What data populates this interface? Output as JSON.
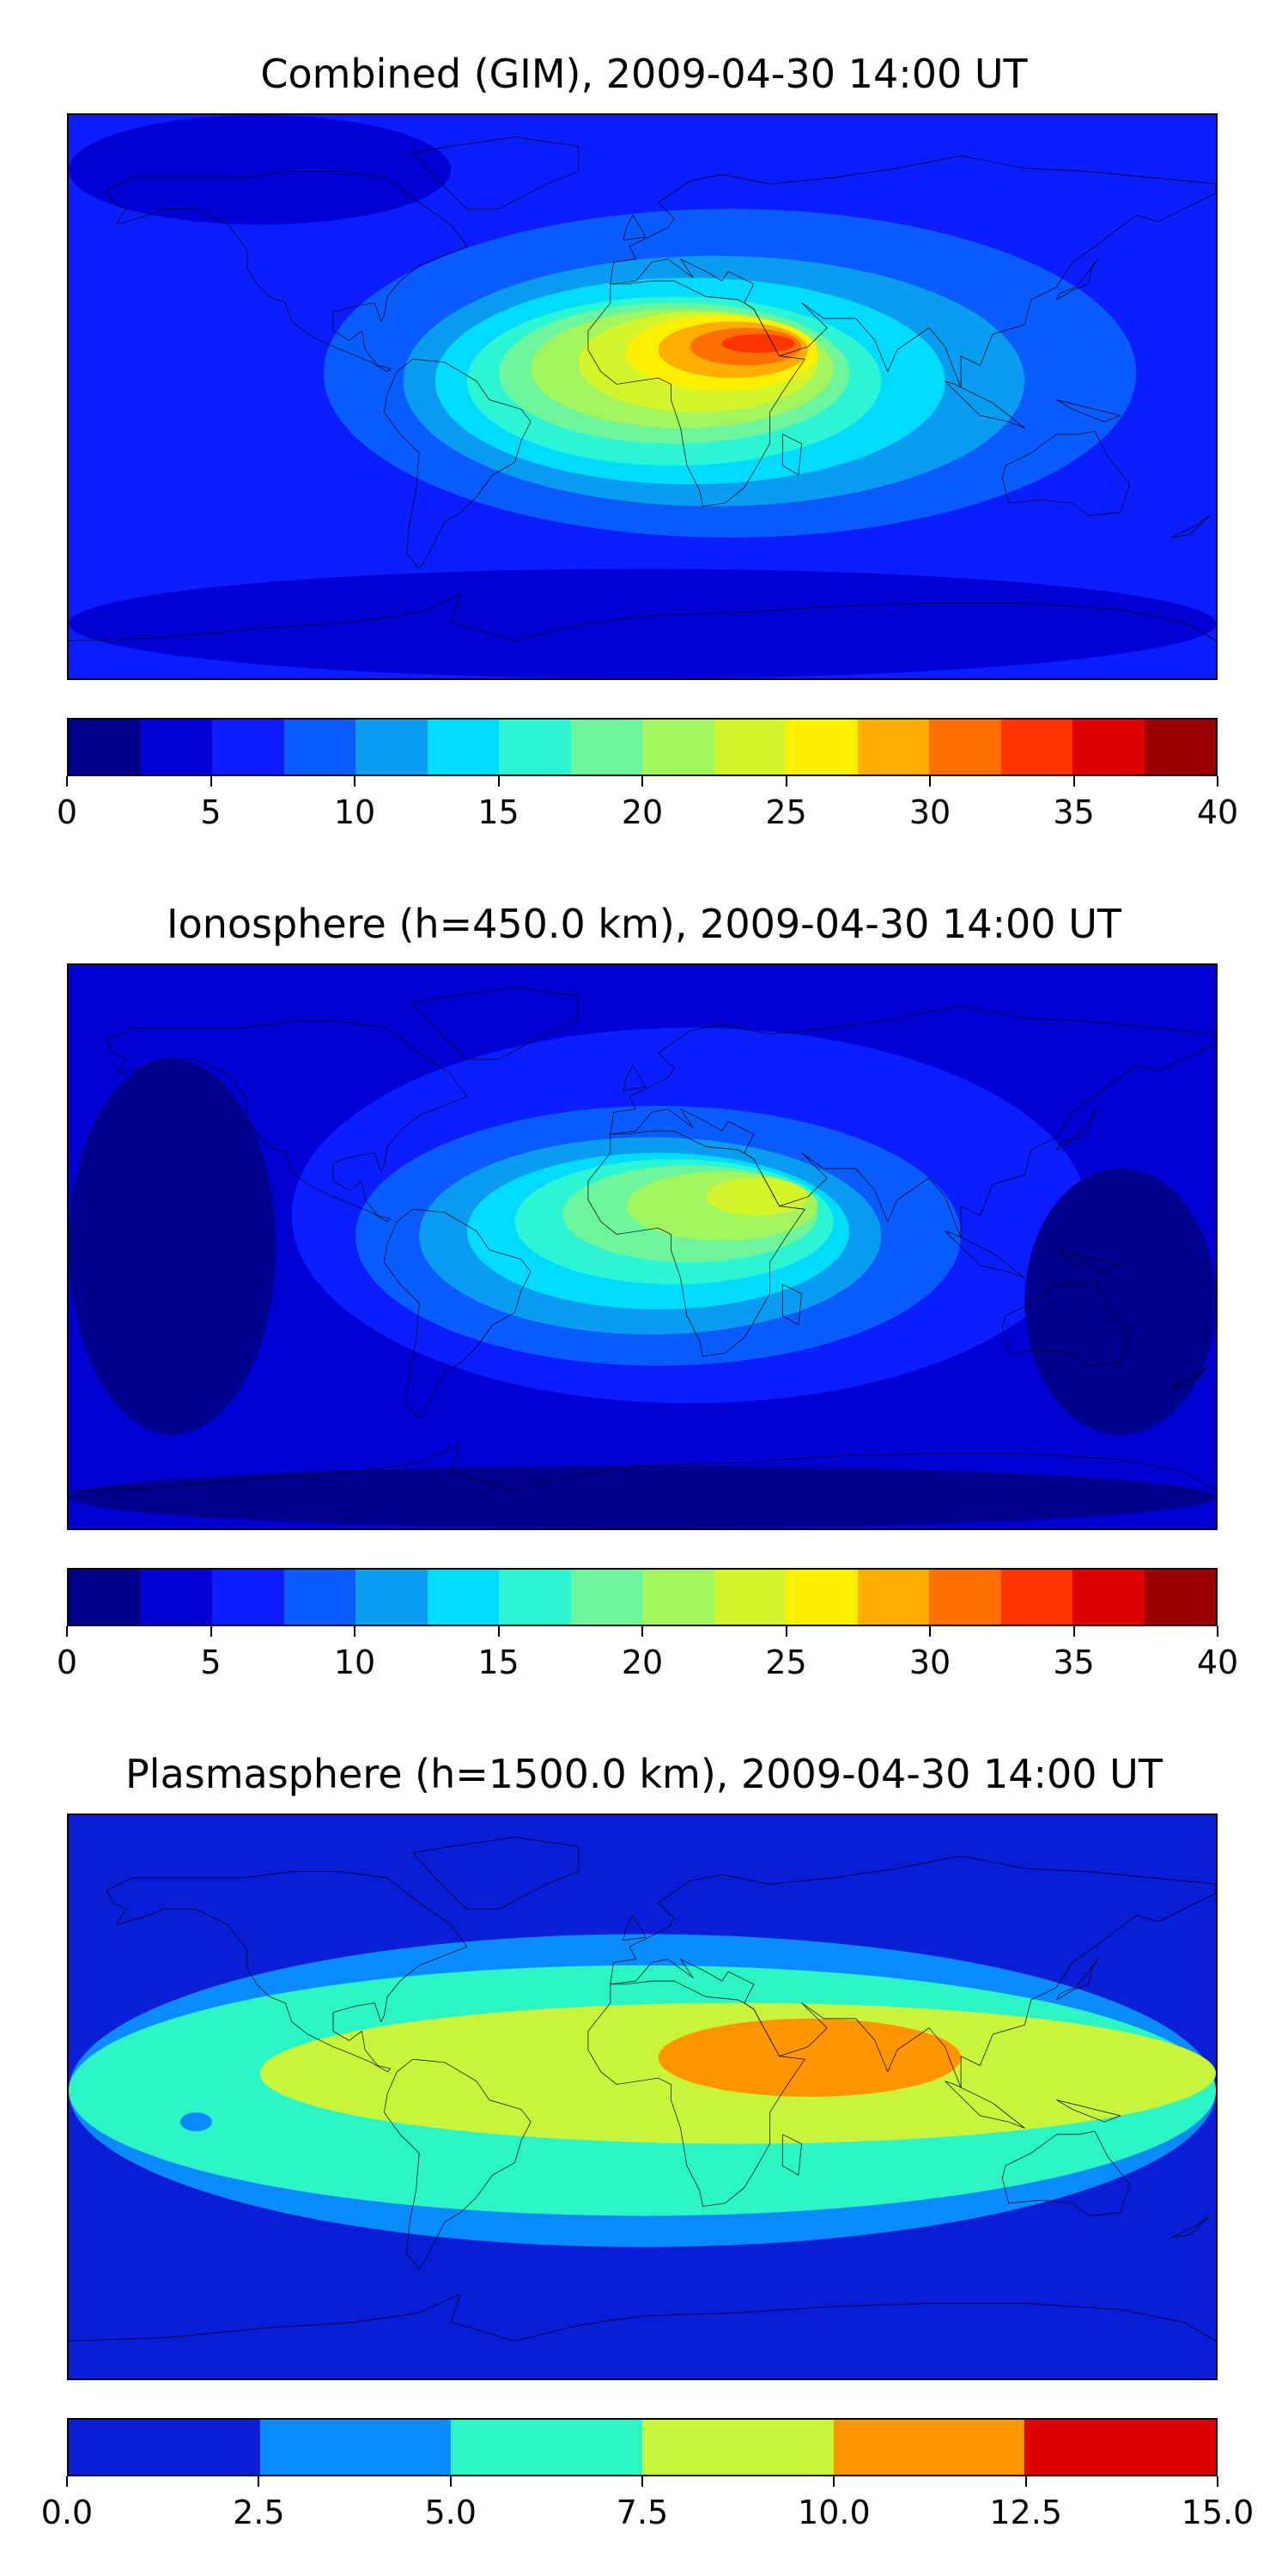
{
  "colorbar_units": "",
  "panels": [
    {
      "title": "Combined (GIM), 2009-04-30 14:00 UT",
      "levels": [
        0,
        2.5,
        5,
        7.5,
        10,
        12.5,
        15,
        17.5,
        20,
        22.5,
        25,
        27.5,
        30,
        32.5,
        35,
        37.5,
        40
      ],
      "colors": [
        "#00008f",
        "#0000d4",
        "#0a1eff",
        "#0a5cff",
        "#0a9cf0",
        "#00dcff",
        "#2cf5d4",
        "#6cf59a",
        "#a2f55c",
        "#d4f52c",
        "#fff000",
        "#ffae00",
        "#ff7000",
        "#ff3500",
        "#df0000",
        "#9a0000"
      ],
      "tick_labels": [
        "0",
        "5",
        "10",
        "15",
        "20",
        "25",
        "30",
        "35",
        "40"
      ],
      "tick_values": [
        0,
        5,
        10,
        15,
        20,
        25,
        30,
        35,
        40
      ],
      "blobs": [
        {
          "lon": [
            -180,
            180
          ],
          "lat": [
            -90,
            90
          ],
          "level": 2
        },
        {
          "lon": [
            -100,
            155
          ],
          "lat": [
            -45,
            60
          ],
          "level": 3
        },
        {
          "lon": [
            -75,
            120
          ],
          "lat": [
            -35,
            45
          ],
          "level": 4
        },
        {
          "lon": [
            -65,
            95
          ],
          "lat": [
            -28,
            38
          ],
          "level": 5
        },
        {
          "lon": [
            -55,
            75
          ],
          "lat": [
            -22,
            32
          ],
          "level": 6
        },
        {
          "lon": [
            -45,
            65
          ],
          "lat": [
            -15,
            30
          ],
          "level": 7
        },
        {
          "lon": [
            -35,
            60
          ],
          "lat": [
            -10,
            28
          ],
          "level": 8
        },
        {
          "lon": [
            -20,
            55
          ],
          "lat": [
            -5,
            27
          ],
          "level": 9
        },
        {
          "lon": [
            -5,
            55
          ],
          "lat": [
            2,
            26
          ],
          "level": 10
        },
        {
          "lon": [
            5,
            52
          ],
          "lat": [
            6,
            24
          ],
          "level": 11
        },
        {
          "lon": [
            15,
            50
          ],
          "lat": [
            10,
            22
          ],
          "level": 12
        },
        {
          "lon": [
            25,
            48
          ],
          "lat": [
            14,
            20
          ],
          "level": 13
        }
      ],
      "low_zones": [
        {
          "lon": [
            -180,
            180
          ],
          "lat": [
            -90,
            -55
          ],
          "level": 1
        },
        {
          "lon": [
            -180,
            -60
          ],
          "lat": [
            55,
            90
          ],
          "level": 1
        }
      ]
    },
    {
      "title": "Ionosphere  (h=450.0 km), 2009-04-30 14:00 UT",
      "levels": [
        0,
        2.5,
        5,
        7.5,
        10,
        12.5,
        15,
        17.5,
        20,
        22.5,
        25,
        27.5,
        30,
        32.5,
        35,
        37.5,
        40
      ],
      "colors": [
        "#00008f",
        "#0000d4",
        "#0a1eff",
        "#0a5cff",
        "#0a9cf0",
        "#00dcff",
        "#2cf5d4",
        "#6cf59a",
        "#a2f55c",
        "#d4f52c",
        "#fff000",
        "#ffae00",
        "#ff7000",
        "#ff3500",
        "#df0000",
        "#9a0000"
      ],
      "tick_labels": [
        "0",
        "5",
        "10",
        "15",
        "20",
        "25",
        "30",
        "35",
        "40"
      ],
      "tick_values": [
        0,
        5,
        10,
        15,
        20,
        25,
        30,
        35,
        40
      ],
      "blobs": [
        {
          "lon": [
            -180,
            180
          ],
          "lat": [
            -90,
            90
          ],
          "level": 1
        },
        {
          "lon": [
            -110,
            140
          ],
          "lat": [
            -50,
            70
          ],
          "level": 2
        },
        {
          "lon": [
            -90,
            100
          ],
          "lat": [
            -38,
            45
          ],
          "level": 3
        },
        {
          "lon": [
            -70,
            75
          ],
          "lat": [
            -28,
            35
          ],
          "level": 4
        },
        {
          "lon": [
            -55,
            65
          ],
          "lat": [
            -20,
            30
          ],
          "level": 5
        },
        {
          "lon": [
            -40,
            60
          ],
          "lat": [
            -12,
            28
          ],
          "level": 6
        },
        {
          "lon": [
            -25,
            55
          ],
          "lat": [
            -5,
            26
          ],
          "level": 7
        },
        {
          "lon": [
            -5,
            55
          ],
          "lat": [
            2,
            24
          ],
          "level": 8
        },
        {
          "lon": [
            20,
            52
          ],
          "lat": [
            10,
            22
          ],
          "level": 9
        }
      ],
      "low_zones": [
        {
          "lon": [
            -180,
            -115
          ],
          "lat": [
            -60,
            60
          ],
          "level": 0
        },
        {
          "lon": [
            120,
            180
          ],
          "lat": [
            -60,
            25
          ],
          "level": 0
        },
        {
          "lon": [
            -180,
            180
          ],
          "lat": [
            -90,
            -70
          ],
          "level": 0
        }
      ]
    },
    {
      "title": "Plasmasphere (h=1500.0 km), 2009-04-30 14:00 UT",
      "levels": [
        0.0,
        2.5,
        5.0,
        7.5,
        10.0,
        12.5,
        15.0
      ],
      "colors": [
        "#0a1ed8",
        "#0a8cff",
        "#2cf5c4",
        "#c8f53c",
        "#ff9600",
        "#df0000"
      ],
      "tick_labels": [
        "0.0",
        "2.5",
        "5.0",
        "7.5",
        "10.0",
        "12.5",
        "15.0"
      ],
      "tick_values": [
        0,
        2.5,
        5,
        7.5,
        10,
        12.5,
        15
      ],
      "blobs": [
        {
          "lon": [
            -180,
            180
          ],
          "lat": [
            -90,
            90
          ],
          "level": 0
        },
        {
          "lon": [
            -180,
            180
          ],
          "lat": [
            -48,
            52
          ],
          "level": 1
        },
        {
          "lon": [
            -180,
            180
          ],
          "lat": [
            -38,
            42
          ],
          "level": 2
        },
        {
          "lon": [
            -120,
            180
          ],
          "lat": [
            -15,
            30
          ],
          "level": 3
        },
        {
          "lon": [
            5,
            100
          ],
          "lat": [
            0,
            25
          ],
          "level": 4
        }
      ],
      "low_zones": [
        {
          "lon": [
            -145,
            -135
          ],
          "lat": [
            -11,
            -5
          ],
          "level": 1
        }
      ]
    }
  ]
}
